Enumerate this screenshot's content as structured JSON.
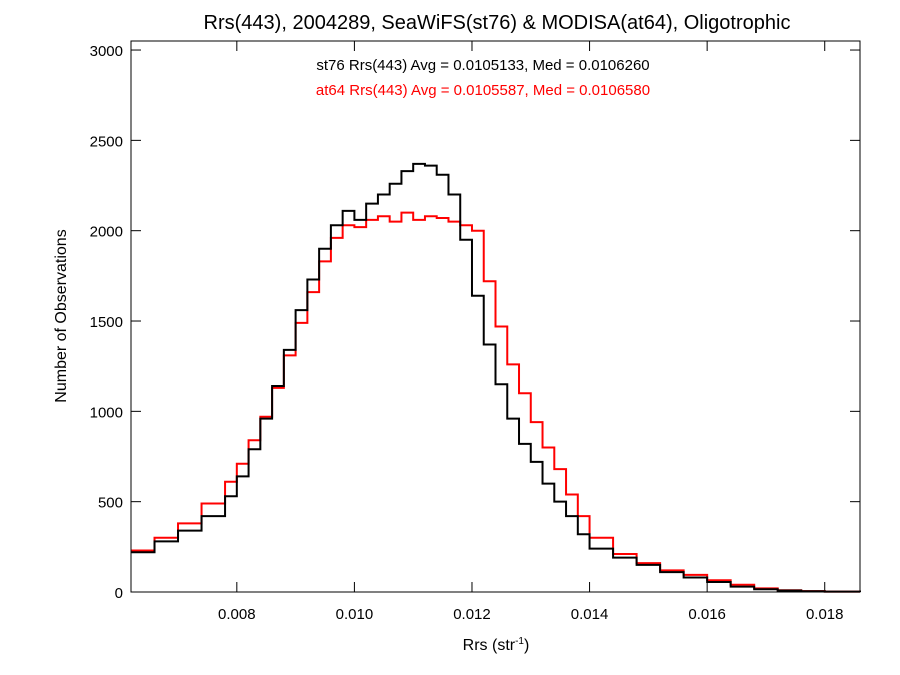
{
  "chart_data": {
    "type": "line",
    "title": "Rrs(443), 2004289, SeaWiFS(st76) & MODISA(at64), Oligotrophic",
    "xlabel": "Rrs (str",
    "xlabel_sup": "-1",
    "xlabel_close": ")",
    "ylabel": "Number of Observations",
    "xlim": [
      0.0062,
      0.0186
    ],
    "ylim": [
      0,
      3050
    ],
    "x_ticks": [
      0.008,
      0.01,
      0.012,
      0.014,
      0.016,
      0.018
    ],
    "x_tick_labels": [
      "0.008",
      "0.010",
      "0.012",
      "0.014",
      "0.016",
      "0.018"
    ],
    "y_ticks": [
      0,
      500,
      1000,
      1500,
      2000,
      2500,
      3000
    ],
    "y_tick_labels": [
      "0",
      "500",
      "1000",
      "1500",
      "2000",
      "2500",
      "3000"
    ],
    "annotations": [
      {
        "text": "st76 Rrs(443) Avg = 0.0105133, Med = 0.0106260",
        "color": "#000000"
      },
      {
        "text": "at64 Rrs(443) Avg = 0.0105587, Med = 0.0106580",
        "color": "#ff0000"
      }
    ],
    "series": [
      {
        "color": "#000000",
        "style": "step",
        "x": [
          0.0062,
          0.0066,
          0.007,
          0.0074,
          0.0078,
          0.008,
          0.0082,
          0.0084,
          0.0086,
          0.0088,
          0.009,
          0.0092,
          0.0094,
          0.0096,
          0.0098,
          0.01,
          0.0102,
          0.0104,
          0.0106,
          0.0108,
          0.011,
          0.0112,
          0.0114,
          0.0116,
          0.0118,
          0.012,
          0.0122,
          0.0124,
          0.0126,
          0.0128,
          0.013,
          0.0132,
          0.0134,
          0.0136,
          0.0138,
          0.014,
          0.0144,
          0.0148,
          0.0152,
          0.0156,
          0.016,
          0.0164,
          0.0168,
          0.0172,
          0.0176,
          0.018,
          0.0186
        ],
        "y": [
          220,
          280,
          340,
          420,
          530,
          640,
          790,
          960,
          1140,
          1340,
          1560,
          1730,
          1900,
          2030,
          2110,
          2060,
          2150,
          2200,
          2260,
          2330,
          2370,
          2360,
          2310,
          2200,
          1950,
          1640,
          1370,
          1150,
          960,
          820,
          720,
          600,
          500,
          420,
          320,
          240,
          190,
          150,
          110,
          80,
          55,
          30,
          15,
          8,
          4,
          2,
          0
        ]
      },
      {
        "color": "#ff0000",
        "style": "step",
        "x": [
          0.0062,
          0.0066,
          0.007,
          0.0074,
          0.0078,
          0.008,
          0.0082,
          0.0084,
          0.0086,
          0.0088,
          0.009,
          0.0092,
          0.0094,
          0.0096,
          0.0098,
          0.01,
          0.0102,
          0.0104,
          0.0106,
          0.0108,
          0.011,
          0.0112,
          0.0114,
          0.0116,
          0.0118,
          0.012,
          0.0122,
          0.0124,
          0.0126,
          0.0128,
          0.013,
          0.0132,
          0.0134,
          0.0136,
          0.0138,
          0.014,
          0.0144,
          0.0148,
          0.0152,
          0.0156,
          0.016,
          0.0164,
          0.0168,
          0.0172,
          0.0176,
          0.018,
          0.0186
        ],
        "y": [
          230,
          300,
          380,
          490,
          610,
          710,
          840,
          970,
          1130,
          1310,
          1490,
          1660,
          1830,
          1960,
          2030,
          2020,
          2060,
          2080,
          2050,
          2100,
          2060,
          2080,
          2070,
          2050,
          2030,
          2000,
          1720,
          1470,
          1260,
          1100,
          940,
          800,
          680,
          540,
          420,
          300,
          210,
          160,
          120,
          95,
          65,
          40,
          20,
          10,
          5,
          2,
          0
        ]
      }
    ]
  }
}
